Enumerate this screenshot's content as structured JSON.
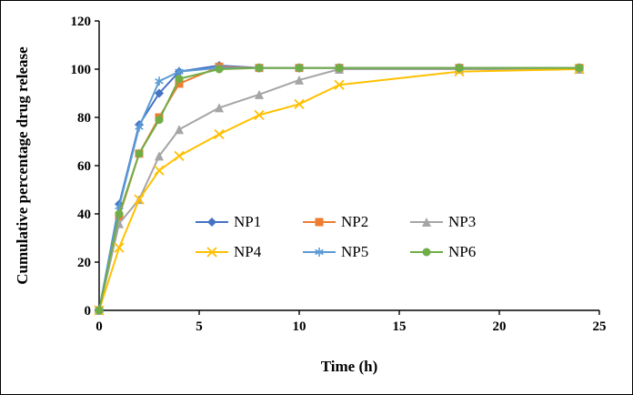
{
  "chart_data": {
    "type": "line",
    "title": "",
    "xlabel": "Time (h)",
    "ylabel": "Cumulative percentage drug release",
    "xlim": [
      0,
      25
    ],
    "ylim": [
      0,
      120
    ],
    "xticks": [
      0,
      5,
      10,
      15,
      20,
      25
    ],
    "yticks": [
      0,
      20,
      40,
      60,
      80,
      100,
      120
    ],
    "grid": false,
    "legend_position": "inside-center",
    "x": [
      0,
      1,
      2,
      3,
      4,
      6,
      8,
      10,
      12,
      18,
      24
    ],
    "series": [
      {
        "name": "NP1",
        "color": "#4472C4",
        "marker": "diamond",
        "values": [
          0,
          44,
          77,
          90,
          99,
          101.5,
          100.5,
          100.5,
          100.5,
          100.5,
          100.5
        ]
      },
      {
        "name": "NP2",
        "color": "#ED7D31",
        "marker": "square",
        "values": [
          0,
          39,
          65,
          80,
          94,
          101,
          100.5,
          100.5,
          100.5,
          100.5,
          100.5
        ]
      },
      {
        "name": "NP3",
        "color": "#A5A5A5",
        "marker": "triangle",
        "values": [
          0,
          36,
          46,
          64,
          75,
          84,
          89.5,
          95.5,
          100,
          100,
          100
        ]
      },
      {
        "name": "NP4",
        "color": "#FFC000",
        "marker": "x",
        "values": [
          0,
          26,
          46,
          58,
          64,
          73,
          81,
          85.5,
          93.5,
          99,
          100
        ]
      },
      {
        "name": "NP5",
        "color": "#5B9BD5",
        "marker": "asterisk",
        "values": [
          0,
          43,
          76,
          95,
          99,
          100.5,
          100.5,
          100.5,
          100.5,
          100.5,
          100.5
        ]
      },
      {
        "name": "NP6",
        "color": "#70AD47",
        "marker": "circle",
        "values": [
          0,
          40,
          65,
          79,
          96,
          100,
          100.5,
          100.5,
          100.5,
          100.5,
          100.5
        ]
      }
    ]
  }
}
